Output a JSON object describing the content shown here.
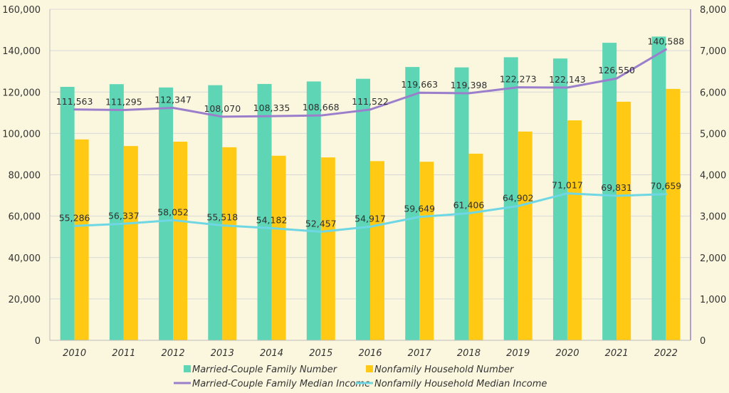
{
  "chart_data": {
    "type": "bar",
    "categories": [
      "2010",
      "2011",
      "2012",
      "2013",
      "2014",
      "2015",
      "2016",
      "2017",
      "2018",
      "2019",
      "2020",
      "2021",
      "2022"
    ],
    "series": [
      {
        "name": "Married-Couple Family Number",
        "kind": "bar",
        "axis": "left",
        "color": "#5ed6b6",
        "values": [
          122500,
          123800,
          122200,
          123300,
          123900,
          125100,
          126400,
          132100,
          131900,
          136800,
          136200,
          143800,
          146800
        ]
      },
      {
        "name": "Nonfamily Household Number",
        "kind": "bar",
        "axis": "left",
        "color": "#ffc914",
        "values": [
          97100,
          93900,
          96000,
          93300,
          89200,
          88400,
          86600,
          86300,
          90200,
          100900,
          106300,
          115300,
          121500
        ]
      },
      {
        "name": "Married-Couple Family Median Income",
        "kind": "line",
        "axis": "right",
        "color": "#9b7fcc",
        "values": [
          111563,
          111295,
          112347,
          108070,
          108335,
          108668,
          111522,
          119663,
          119398,
          122273,
          122143,
          126550,
          140588
        ],
        "labels": [
          "111,563",
          "111,295",
          "112,347",
          "108,070",
          "108,335",
          "108,668",
          "111,522",
          "119,663",
          "119,398",
          "122,273",
          "122,143",
          "126,550",
          "140,588"
        ]
      },
      {
        "name": "Nonfamily Household Median Income",
        "kind": "line",
        "axis": "right",
        "color": "#6fd7e4",
        "values": [
          55286,
          56337,
          58052,
          55518,
          54182,
          52457,
          54917,
          59649,
          61406,
          64902,
          71017,
          69831,
          70659
        ],
        "labels": [
          "55,286",
          "56,337",
          "58,052",
          "55,518",
          "54,182",
          "52,457",
          "54,917",
          "59,649",
          "61,406",
          "64,902",
          "71,017",
          "69,831",
          "70,659"
        ]
      }
    ],
    "left_axis": {
      "min": 0,
      "max": 160000,
      "ticks": [
        "0",
        "20,000",
        "40,000",
        "60,000",
        "80,000",
        "100,000",
        "120,000",
        "140,000",
        "160,000"
      ]
    },
    "right_axis": {
      "min": 0,
      "max": 8000,
      "ticks": [
        "0",
        "1,000",
        "2,000",
        "3,000",
        "4,000",
        "5,000",
        "6,000",
        "7,000",
        "8,000"
      ]
    },
    "grid": true,
    "legend": "bottom",
    "gridline_color": "#d8d8d8",
    "axis_color": "#9b7fcc"
  }
}
